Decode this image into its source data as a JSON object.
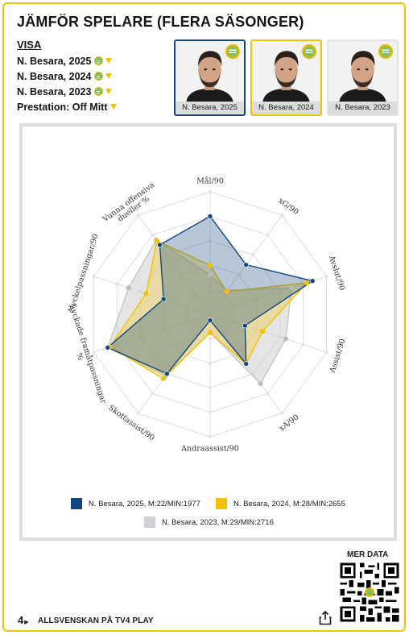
{
  "title": "JÄMFÖR SPELARE (FLERA SÄSONGER)",
  "visa_label": "VISA",
  "filters": [
    {
      "label": "N. Besara, 2025",
      "has_badge": true
    },
    {
      "label": "N. Besara, 2024",
      "has_badge": true
    },
    {
      "label": "N. Besara, 2023",
      "has_badge": true
    },
    {
      "label": "Prestation: Off Mitt",
      "has_badge": false
    }
  ],
  "players": [
    {
      "label": "N. Besara, 2025",
      "state": "blue"
    },
    {
      "label": "N. Besara, 2024",
      "state": "yellow"
    },
    {
      "label": "N. Besara, 2023",
      "state": "none"
    }
  ],
  "colors": {
    "accent_yellow": "#f2c200",
    "series_2025": "#12467e",
    "series_2024": "#f2c200",
    "series_2023": "#cfcfd4",
    "badge_green": "#7fbf63"
  },
  "chart_data": {
    "type": "radar",
    "axes": [
      "Mål/90",
      "xG/90",
      "Avslut/90",
      "Assist/90",
      "xA/90",
      "Andraassist/90",
      "Skottassist/90",
      "Lyckade framåtpassningar %",
      "Nyckelpassningar/90",
      "Vunna offensiva dueller %"
    ],
    "range": [
      0,
      100
    ],
    "rings": 5,
    "grid": true,
    "series": [
      {
        "name": "N. Besara, 2025, M:22/MIN:1977",
        "color": "#12467e",
        "values": [
          80,
          50,
          88,
          30,
          50,
          5,
          60,
          88,
          40,
          70
        ]
      },
      {
        "name": "N. Besara, 2024, M:28/MIN:2655",
        "color": "#f2c200",
        "values": [
          40,
          23,
          83,
          45,
          50,
          15,
          65,
          86,
          55,
          74
        ]
      },
      {
        "name": "N. Besara, 2023, M:29/MIN:2716",
        "color": "#cfcfd4",
        "values": [
          32,
          24,
          70,
          65,
          70,
          15,
          62,
          88,
          70,
          75
        ]
      }
    ]
  },
  "legend": [
    {
      "label": "N. Besara, 2025, M:22/MIN:1977",
      "color": "#12467e"
    },
    {
      "label": "N. Besara, 2024, M:28/MIN:2655",
      "color": "#f2c200"
    },
    {
      "label": "N. Besara, 2023, M:29/MIN:2716",
      "color": "#cfcfd4"
    }
  ],
  "footer": {
    "logo": "4",
    "text": "ALLSVENSKAN PÅ TV4 PLAY",
    "mer_data": "MER DATA"
  }
}
